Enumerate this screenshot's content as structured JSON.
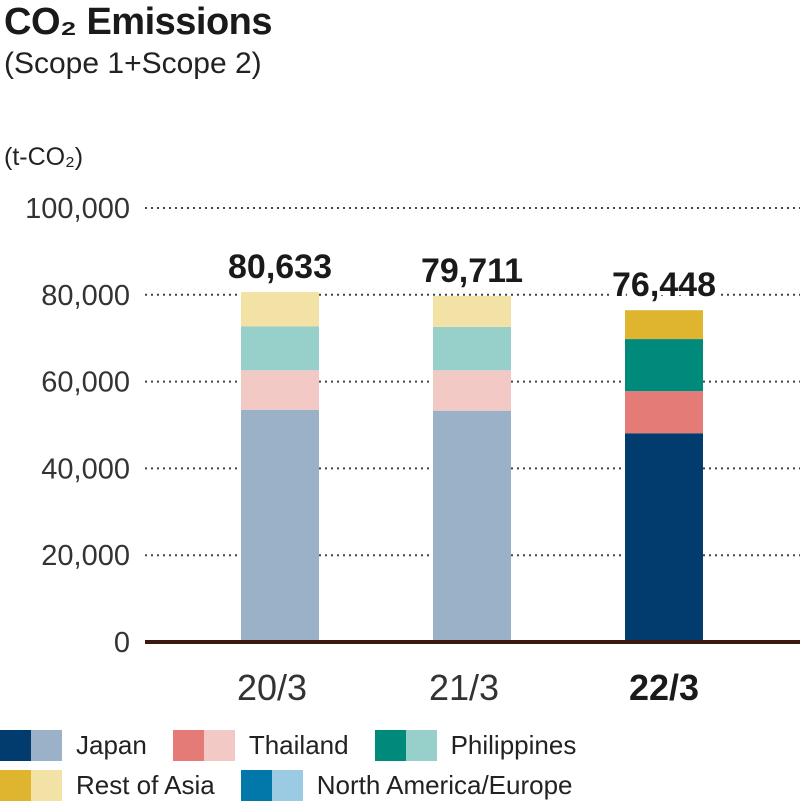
{
  "header": {
    "title": "CO₂ Emissions",
    "subtitle": "(Scope 1+Scope 2)",
    "unit": "(t-CO₂)"
  },
  "chart_data": {
    "type": "bar",
    "stacked": true,
    "title": "CO₂ Emissions",
    "subtitle": "(Scope 1+Scope 2)",
    "ylabel": "(t-CO₂)",
    "xlabel": "",
    "ylim": [
      0,
      100000
    ],
    "yticks": [
      0,
      20000,
      40000,
      60000,
      80000,
      100000
    ],
    "ytick_labels": [
      "0",
      "20,000",
      "40,000",
      "60,000",
      "80,000",
      "100,000"
    ],
    "grid": true,
    "categories": [
      "20/3",
      "21/3",
      "22/3"
    ],
    "highlight_category": "22/3",
    "totals": [
      80633,
      79711,
      76448
    ],
    "total_labels": [
      "80,633",
      "79,711",
      "76,448"
    ],
    "series": [
      {
        "name": "Japan",
        "values": [
          53500,
          53300,
          48100
        ],
        "color_dark": "#023b6e",
        "color_light": "#9bb1c7"
      },
      {
        "name": "Thailand",
        "values": [
          9100,
          9300,
          9700
        ],
        "color_dark": "#e47b76",
        "color_light": "#f3c9c6"
      },
      {
        "name": "Philippines",
        "values": [
          10100,
          10000,
          12000
        ],
        "color_dark": "#008a7c",
        "color_light": "#97cfca"
      },
      {
        "name": "Rest of Asia",
        "values": [
          7933,
          7111,
          6648
        ],
        "color_dark": "#dfb42f",
        "color_light": "#f3e2a6"
      },
      {
        "name": "North America/Europe",
        "values": [
          0,
          0,
          0
        ],
        "color_dark": "#0277aa",
        "color_light": "#9bcbe2"
      }
    ],
    "legend_position": "bottom"
  }
}
